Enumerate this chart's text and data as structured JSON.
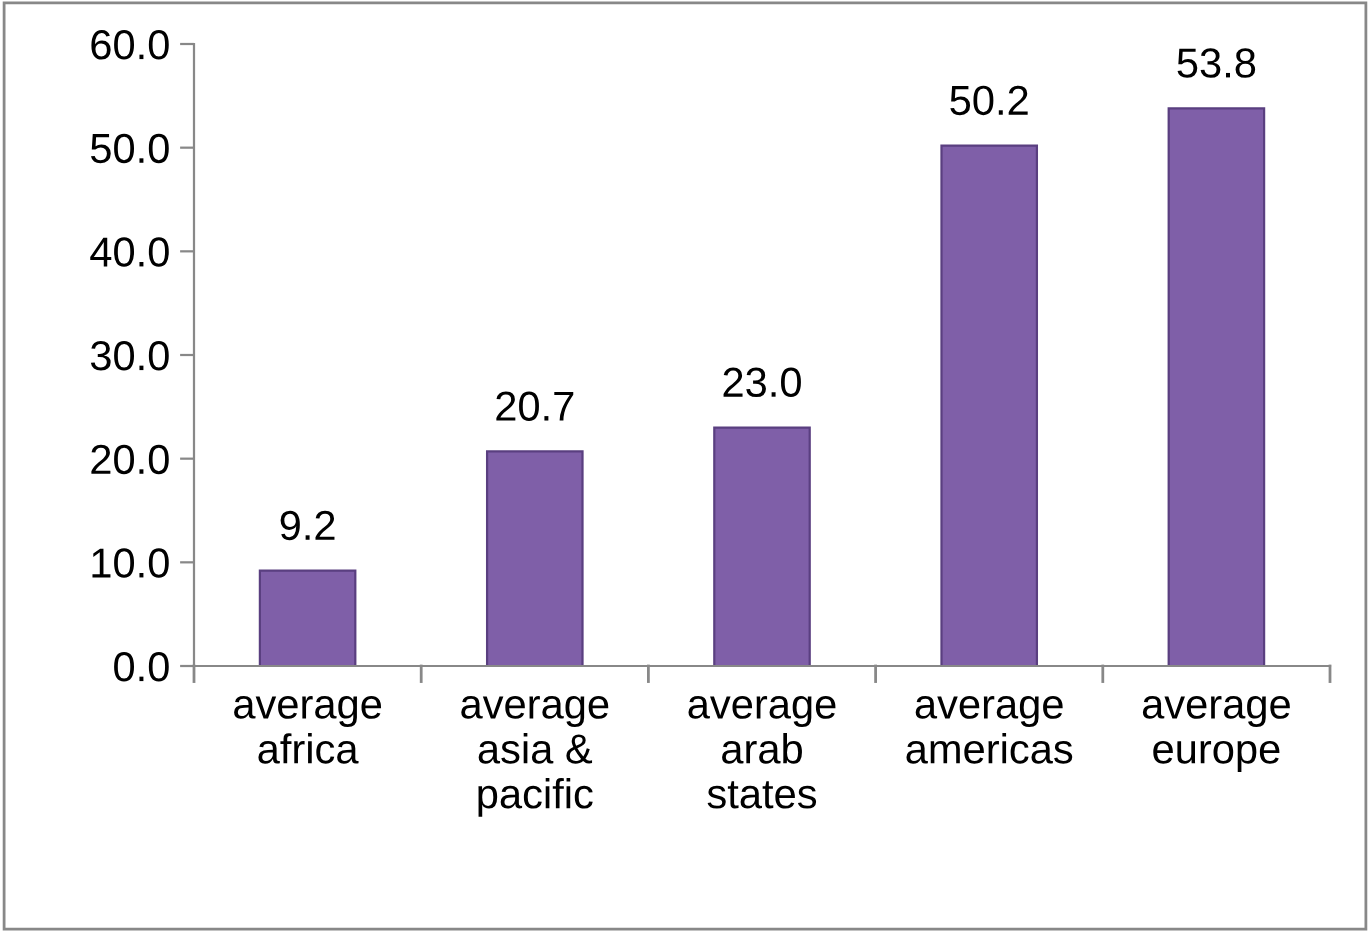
{
  "chart_data": {
    "type": "bar",
    "categories": [
      "average\nafrica",
      "average\nasia &\npacific",
      "average\narab\nstates",
      "average\namericas",
      "average\neurope"
    ],
    "values": [
      9.2,
      20.7,
      23.0,
      50.2,
      53.8
    ],
    "color": "#7f5fa8",
    "value_labels": [
      "9.2",
      "20.7",
      "23.0",
      "50.2",
      "53.8"
    ],
    "ylim": [
      0,
      60
    ],
    "yticks": [
      {
        "value": 0,
        "label": "0.0"
      },
      {
        "value": 10,
        "label": "10.0"
      },
      {
        "value": 20,
        "label": "20.0"
      },
      {
        "value": 30,
        "label": "30.0"
      },
      {
        "value": 40,
        "label": "40.0"
      },
      {
        "value": 50,
        "label": "50.0"
      },
      {
        "value": 60,
        "label": "60.0"
      }
    ],
    "grid": false,
    "legend": false
  }
}
